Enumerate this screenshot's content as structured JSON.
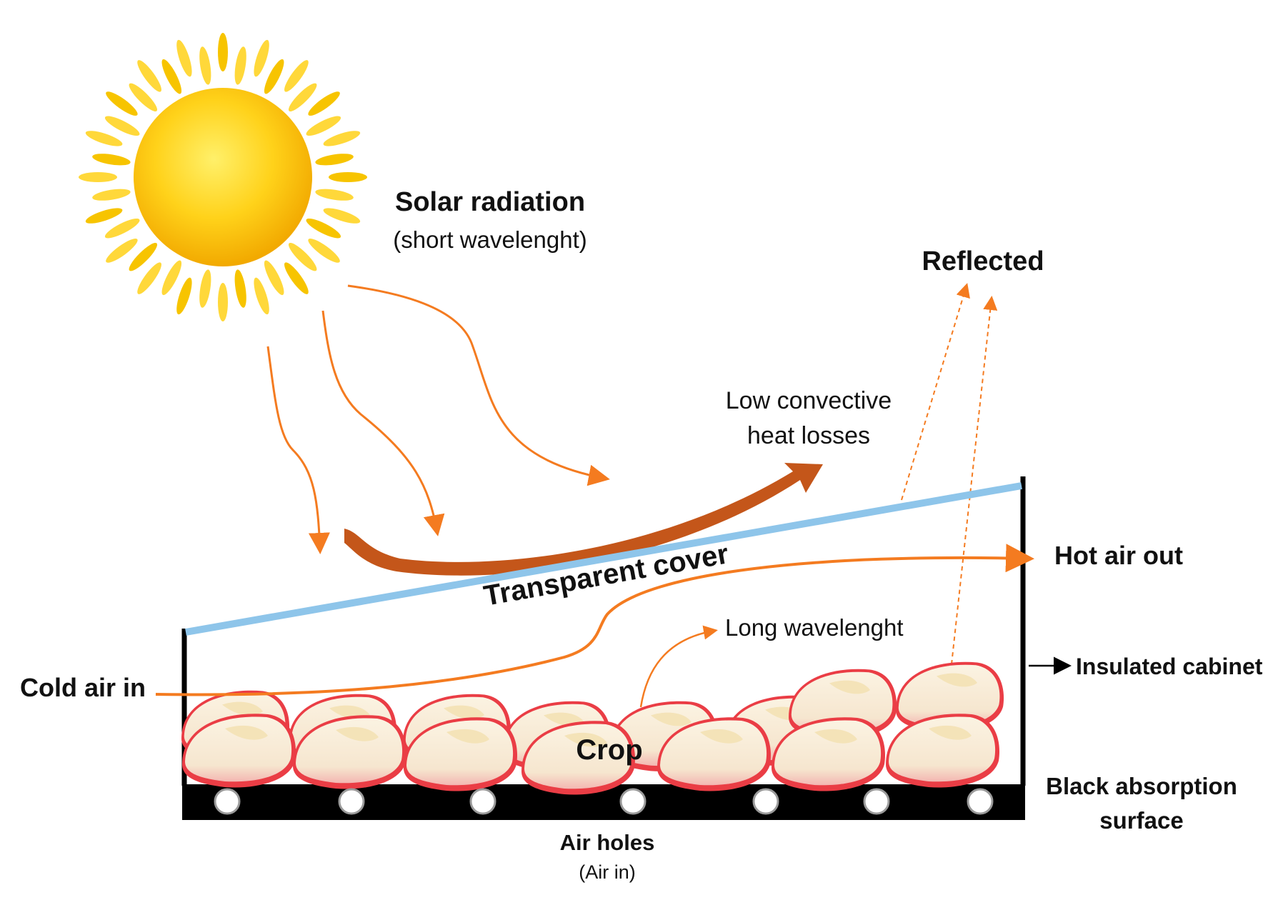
{
  "labels": {
    "solar_title": "Solar radiation",
    "solar_sub": "(short wavelenght)",
    "reflected": "Reflected",
    "low_conv_1": "Low convective",
    "low_conv_2": "heat losses",
    "transparent_cover": "Transparent cover",
    "hot_air_out": "Hot air out",
    "long_wavelength": "Long wavelenght",
    "insulated_cabinet": "Insulated cabinet",
    "cold_air_in": "Cold air in",
    "crop": "Crop",
    "black_surface_1": "Black absorption",
    "black_surface_2": "surface",
    "air_holes": "Air holes",
    "air_holes_sub": "(Air in)"
  },
  "colors": {
    "sun_core": "#f5c000",
    "sun_core_light": "#ffe14a",
    "sun_rays": "#ffd21a",
    "arrow_orange": "#f47b20",
    "arrow_brown": "#c4561a",
    "cover_blue": "#8ec5ea",
    "cabinet_black": "#000000",
    "apple_flesh": "#f9edd8",
    "apple_skin": "#e8323e"
  },
  "icons": [
    "sun-icon",
    "apple-slice-icon",
    "air-hole-icon"
  ]
}
